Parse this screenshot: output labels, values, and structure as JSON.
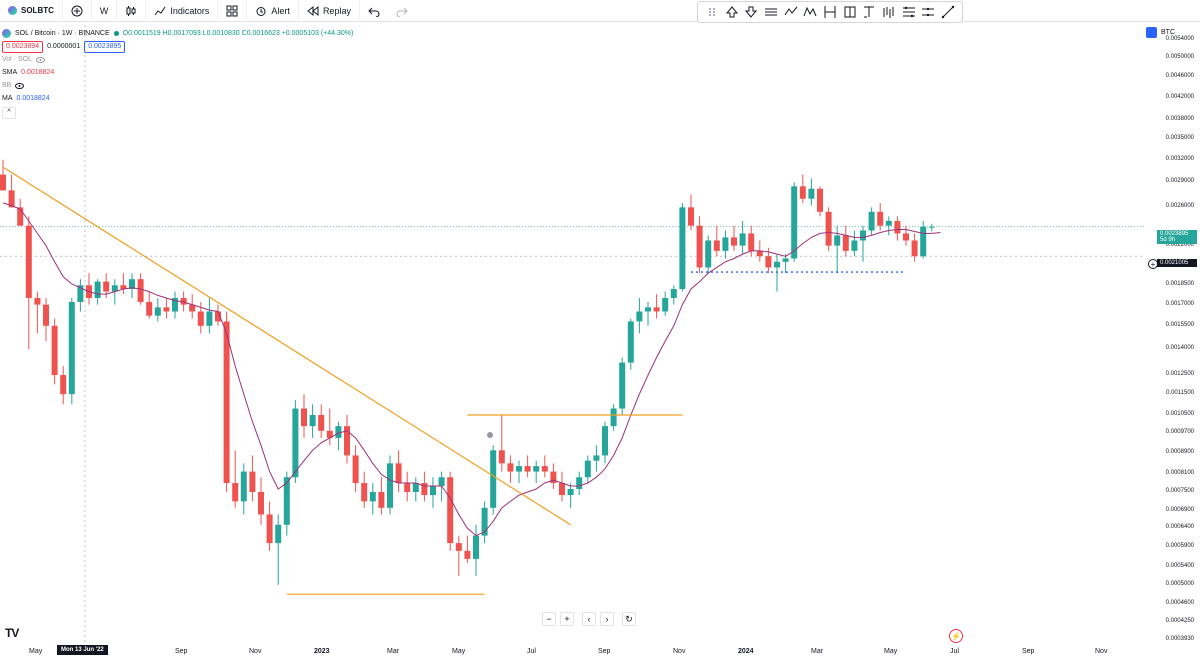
{
  "toolbar": {
    "symbol": "SOLBTC",
    "interval": "W",
    "indicators": "Indicators",
    "alert": "Alert",
    "replay": "Replay"
  },
  "legend": {
    "title": "SOL / Bitcoin · 1W · BINANCE",
    "ohlc": "O0.0011519 H0.0017093 L0.0010830 C0.0016623 +0.0005103 (+44.30%)",
    "bid": "0.0023894",
    "spread": "0.0000001",
    "ask": "0.0023895",
    "vol": "Vol · SOL",
    "sma_label": "SMA",
    "sma_value": "0.0018824",
    "bb_label": "BB",
    "ma_label": "MA",
    "ma_value": "0.0018824"
  },
  "axis": {
    "currency": "BTC",
    "price_ticks": [
      "0.0054000",
      "0.0050000",
      "0.0046000",
      "0.0042000",
      "0.0038000",
      "0.0035000",
      "0.0032000",
      "0.0029000",
      "0.0026000",
      "0.0022000",
      "0.0020000",
      "0.0018500",
      "0.0017000",
      "0.0015500",
      "0.0014000",
      "0.0012500",
      "0.0011500",
      "0.0010500",
      "0.0009700",
      "0.0008900",
      "0.0008100",
      "0.0007500",
      "0.0006900",
      "0.0006400",
      "0.0005900",
      "0.0005400",
      "0.0005000",
      "0.0004600",
      "0.0004250",
      "0.0003930"
    ],
    "last_price": "0.0023895",
    "countdown": "5d 9h",
    "crosshair_price": "0.0021005",
    "time_labels": [
      "May",
      "Sep",
      "Nov",
      "2023",
      "Mar",
      "May",
      "Jul",
      "Sep",
      "Nov",
      "2024",
      "Mar",
      "May",
      "Jul",
      "Sep",
      "Nov"
    ],
    "time_cursor": "Mon 13 Jun '22"
  },
  "colors": {
    "up": "#26a69a",
    "down": "#ef5350",
    "ma": "#a0307a",
    "trend": "#f0a020",
    "support": "#2962ff"
  },
  "chart_data": {
    "type": "candlestick",
    "title": "SOL / Bitcoin · 1W · BINANCE",
    "xlabel": "",
    "ylabel": "",
    "scale": "log",
    "ylim": [
      0.000393,
      0.0054
    ],
    "candles": [
      {
        "o": 0.003,
        "h": 0.0032,
        "l": 0.0028,
        "c": 0.0028
      },
      {
        "o": 0.0028,
        "h": 0.003,
        "l": 0.0026,
        "c": 0.0026
      },
      {
        "o": 0.0026,
        "h": 0.0027,
        "l": 0.0024,
        "c": 0.0024
      },
      {
        "o": 0.0024,
        "h": 0.0025,
        "l": 0.0014,
        "c": 0.00175
      },
      {
        "o": 0.00175,
        "h": 0.0018,
        "l": 0.0015,
        "c": 0.0017
      },
      {
        "o": 0.0017,
        "h": 0.00175,
        "l": 0.00145,
        "c": 0.00155
      },
      {
        "o": 0.00155,
        "h": 0.0016,
        "l": 0.0012,
        "c": 0.00125
      },
      {
        "o": 0.00125,
        "h": 0.0013,
        "l": 0.0011,
        "c": 0.00115
      },
      {
        "o": 0.00115,
        "h": 0.00175,
        "l": 0.0011,
        "c": 0.00172
      },
      {
        "o": 0.00172,
        "h": 0.0019,
        "l": 0.00165,
        "c": 0.00185
      },
      {
        "o": 0.00185,
        "h": 0.00195,
        "l": 0.0017,
        "c": 0.00175
      },
      {
        "o": 0.00175,
        "h": 0.0019,
        "l": 0.0017,
        "c": 0.00188
      },
      {
        "o": 0.00188,
        "h": 0.00195,
        "l": 0.00175,
        "c": 0.0018
      },
      {
        "o": 0.0018,
        "h": 0.0019,
        "l": 0.0017,
        "c": 0.00185
      },
      {
        "o": 0.00185,
        "h": 0.00195,
        "l": 0.00178,
        "c": 0.00182
      },
      {
        "o": 0.00182,
        "h": 0.00195,
        "l": 0.00175,
        "c": 0.0019
      },
      {
        "o": 0.0019,
        "h": 0.00195,
        "l": 0.0017,
        "c": 0.00172
      },
      {
        "o": 0.00172,
        "h": 0.0018,
        "l": 0.0016,
        "c": 0.00162
      },
      {
        "o": 0.00162,
        "h": 0.00175,
        "l": 0.00158,
        "c": 0.00168
      },
      {
        "o": 0.00168,
        "h": 0.00175,
        "l": 0.0016,
        "c": 0.00165
      },
      {
        "o": 0.00165,
        "h": 0.0018,
        "l": 0.0016,
        "c": 0.00175
      },
      {
        "o": 0.00175,
        "h": 0.0018,
        "l": 0.00165,
        "c": 0.0017
      },
      {
        "o": 0.0017,
        "h": 0.00178,
        "l": 0.0016,
        "c": 0.00165
      },
      {
        "o": 0.00165,
        "h": 0.00172,
        "l": 0.0015,
        "c": 0.00155
      },
      {
        "o": 0.00155,
        "h": 0.00175,
        "l": 0.0015,
        "c": 0.00165
      },
      {
        "o": 0.00165,
        "h": 0.0017,
        "l": 0.00155,
        "c": 0.00158
      },
      {
        "o": 0.00158,
        "h": 0.00165,
        "l": 0.00075,
        "c": 0.00078
      },
      {
        "o": 0.00078,
        "h": 0.0009,
        "l": 0.0007,
        "c": 0.00072
      },
      {
        "o": 0.00072,
        "h": 0.00085,
        "l": 0.00068,
        "c": 0.00082
      },
      {
        "o": 0.00082,
        "h": 0.00088,
        "l": 0.00072,
        "c": 0.00075
      },
      {
        "o": 0.00075,
        "h": 0.0008,
        "l": 0.00065,
        "c": 0.00068
      },
      {
        "o": 0.00068,
        "h": 0.00072,
        "l": 0.00058,
        "c": 0.0006
      },
      {
        "o": 0.0006,
        "h": 0.00068,
        "l": 0.0005,
        "c": 0.00065
      },
      {
        "o": 0.00065,
        "h": 0.00082,
        "l": 0.00062,
        "c": 0.0008
      },
      {
        "o": 0.0008,
        "h": 0.00112,
        "l": 0.00078,
        "c": 0.00108
      },
      {
        "o": 0.00108,
        "h": 0.00115,
        "l": 0.00095,
        "c": 0.001
      },
      {
        "o": 0.001,
        "h": 0.0011,
        "l": 0.00095,
        "c": 0.00105
      },
      {
        "o": 0.00105,
        "h": 0.0011,
        "l": 0.00095,
        "c": 0.00098
      },
      {
        "o": 0.00098,
        "h": 0.00108,
        "l": 0.00092,
        "c": 0.00095
      },
      {
        "o": 0.00095,
        "h": 0.00102,
        "l": 0.0009,
        "c": 0.001
      },
      {
        "o": 0.001,
        "h": 0.00105,
        "l": 0.00085,
        "c": 0.00088
      },
      {
        "o": 0.00088,
        "h": 0.00092,
        "l": 0.00075,
        "c": 0.00078
      },
      {
        "o": 0.00078,
        "h": 0.00082,
        "l": 0.0007,
        "c": 0.00072
      },
      {
        "o": 0.00072,
        "h": 0.00078,
        "l": 0.00068,
        "c": 0.00075
      },
      {
        "o": 0.00075,
        "h": 0.0008,
        "l": 0.00068,
        "c": 0.0007
      },
      {
        "o": 0.0007,
        "h": 0.00088,
        "l": 0.00068,
        "c": 0.00085
      },
      {
        "o": 0.00085,
        "h": 0.0009,
        "l": 0.00075,
        "c": 0.00078
      },
      {
        "o": 0.00078,
        "h": 0.00082,
        "l": 0.00072,
        "c": 0.00075
      },
      {
        "o": 0.00075,
        "h": 0.0008,
        "l": 0.00072,
        "c": 0.00078
      },
      {
        "o": 0.00078,
        "h": 0.00082,
        "l": 0.00072,
        "c": 0.00074
      },
      {
        "o": 0.00074,
        "h": 0.0008,
        "l": 0.0007,
        "c": 0.00077
      },
      {
        "o": 0.00077,
        "h": 0.00082,
        "l": 0.00072,
        "c": 0.0008
      },
      {
        "o": 0.0008,
        "h": 0.00082,
        "l": 0.00058,
        "c": 0.0006
      },
      {
        "o": 0.0006,
        "h": 0.00062,
        "l": 0.00052,
        "c": 0.00058
      },
      {
        "o": 0.00058,
        "h": 0.00062,
        "l": 0.00055,
        "c": 0.00056
      },
      {
        "o": 0.00056,
        "h": 0.00065,
        "l": 0.00052,
        "c": 0.00062
      },
      {
        "o": 0.00062,
        "h": 0.00072,
        "l": 0.0006,
        "c": 0.0007
      },
      {
        "o": 0.0007,
        "h": 0.00092,
        "l": 0.00068,
        "c": 0.0009
      },
      {
        "o": 0.0009,
        "h": 0.00105,
        "l": 0.00082,
        "c": 0.00085
      },
      {
        "o": 0.00085,
        "h": 0.00088,
        "l": 0.00078,
        "c": 0.00082
      },
      {
        "o": 0.00082,
        "h": 0.00086,
        "l": 0.00078,
        "c": 0.00084
      },
      {
        "o": 0.00084,
        "h": 0.00088,
        "l": 0.0008,
        "c": 0.00082
      },
      {
        "o": 0.00082,
        "h": 0.00086,
        "l": 0.00078,
        "c": 0.00084
      },
      {
        "o": 0.00084,
        "h": 0.00088,
        "l": 0.0008,
        "c": 0.00082
      },
      {
        "o": 0.00082,
        "h": 0.00085,
        "l": 0.00076,
        "c": 0.00078
      },
      {
        "o": 0.00078,
        "h": 0.00082,
        "l": 0.00072,
        "c": 0.00074
      },
      {
        "o": 0.00074,
        "h": 0.00078,
        "l": 0.0007,
        "c": 0.00076
      },
      {
        "o": 0.00076,
        "h": 0.00082,
        "l": 0.00074,
        "c": 0.0008
      },
      {
        "o": 0.0008,
        "h": 0.00088,
        "l": 0.00078,
        "c": 0.00086
      },
      {
        "o": 0.00086,
        "h": 0.00092,
        "l": 0.00082,
        "c": 0.00088
      },
      {
        "o": 0.00088,
        "h": 0.00102,
        "l": 0.00085,
        "c": 0.001
      },
      {
        "o": 0.001,
        "h": 0.0011,
        "l": 0.00098,
        "c": 0.00108
      },
      {
        "o": 0.00108,
        "h": 0.00135,
        "l": 0.00105,
        "c": 0.00132
      },
      {
        "o": 0.00132,
        "h": 0.0016,
        "l": 0.00128,
        "c": 0.00158
      },
      {
        "o": 0.00158,
        "h": 0.00175,
        "l": 0.0015,
        "c": 0.00165
      },
      {
        "o": 0.00165,
        "h": 0.00172,
        "l": 0.00155,
        "c": 0.00168
      },
      {
        "o": 0.00168,
        "h": 0.00178,
        "l": 0.0016,
        "c": 0.00165
      },
      {
        "o": 0.00165,
        "h": 0.0018,
        "l": 0.00162,
        "c": 0.00175
      },
      {
        "o": 0.00175,
        "h": 0.00185,
        "l": 0.0017,
        "c": 0.00182
      },
      {
        "o": 0.00182,
        "h": 0.00265,
        "l": 0.0018,
        "c": 0.0026
      },
      {
        "o": 0.0026,
        "h": 0.00275,
        "l": 0.00235,
        "c": 0.0024
      },
      {
        "o": 0.0024,
        "h": 0.0025,
        "l": 0.00195,
        "c": 0.002
      },
      {
        "o": 0.002,
        "h": 0.0023,
        "l": 0.00195,
        "c": 0.00225
      },
      {
        "o": 0.00225,
        "h": 0.0024,
        "l": 0.0021,
        "c": 0.00215
      },
      {
        "o": 0.00215,
        "h": 0.00235,
        "l": 0.00208,
        "c": 0.00228
      },
      {
        "o": 0.00228,
        "h": 0.0024,
        "l": 0.00215,
        "c": 0.0022
      },
      {
        "o": 0.0022,
        "h": 0.00245,
        "l": 0.00212,
        "c": 0.00232
      },
      {
        "o": 0.00232,
        "h": 0.0024,
        "l": 0.0021,
        "c": 0.00215
      },
      {
        "o": 0.00215,
        "h": 0.00225,
        "l": 0.00205,
        "c": 0.0021
      },
      {
        "o": 0.0021,
        "h": 0.00218,
        "l": 0.00195,
        "c": 0.002
      },
      {
        "o": 0.002,
        "h": 0.00212,
        "l": 0.0018,
        "c": 0.00205
      },
      {
        "o": 0.00205,
        "h": 0.00212,
        "l": 0.00195,
        "c": 0.00208
      },
      {
        "o": 0.00208,
        "h": 0.0029,
        "l": 0.00205,
        "c": 0.00285
      },
      {
        "o": 0.00285,
        "h": 0.003,
        "l": 0.00265,
        "c": 0.0027
      },
      {
        "o": 0.0027,
        "h": 0.00295,
        "l": 0.00262,
        "c": 0.00282
      },
      {
        "o": 0.00282,
        "h": 0.00285,
        "l": 0.0025,
        "c": 0.00255
      },
      {
        "o": 0.00255,
        "h": 0.0026,
        "l": 0.00215,
        "c": 0.0022
      },
      {
        "o": 0.0022,
        "h": 0.0024,
        "l": 0.00195,
        "c": 0.0023
      },
      {
        "o": 0.0023,
        "h": 0.0024,
        "l": 0.0021,
        "c": 0.00215
      },
      {
        "o": 0.00215,
        "h": 0.00235,
        "l": 0.0021,
        "c": 0.00225
      },
      {
        "o": 0.00225,
        "h": 0.0024,
        "l": 0.00205,
        "c": 0.00235
      },
      {
        "o": 0.00235,
        "h": 0.0026,
        "l": 0.0023,
        "c": 0.00255
      },
      {
        "o": 0.00255,
        "h": 0.00265,
        "l": 0.00235,
        "c": 0.0024
      },
      {
        "o": 0.0024,
        "h": 0.0025,
        "l": 0.0023,
        "c": 0.00245
      },
      {
        "o": 0.00245,
        "h": 0.0025,
        "l": 0.00225,
        "c": 0.00232
      },
      {
        "o": 0.00232,
        "h": 0.0024,
        "l": 0.0022,
        "c": 0.00225
      },
      {
        "o": 0.00225,
        "h": 0.00232,
        "l": 0.00205,
        "c": 0.0021
      },
      {
        "o": 0.0021,
        "h": 0.00245,
        "l": 0.00208,
        "c": 0.00239
      },
      {
        "o": 0.00239,
        "h": 0.00242,
        "l": 0.00234,
        "c": 0.00239
      }
    ],
    "ma": [
      0.00265,
      0.00262,
      0.00258,
      0.00245,
      0.00232,
      0.0022,
      0.00205,
      0.00192,
      0.00186,
      0.00183,
      0.0018,
      0.00178,
      0.00178,
      0.0018,
      0.00182,
      0.00183,
      0.00182,
      0.0018,
      0.00177,
      0.00175,
      0.00173,
      0.00172,
      0.0017,
      0.00168,
      0.00166,
      0.00165,
      0.0015,
      0.0013,
      0.00115,
      0.00102,
      0.00092,
      0.00082,
      0.00076,
      0.00078,
      0.00082,
      0.00086,
      0.0009,
      0.00093,
      0.00095,
      0.00097,
      0.00098,
      0.00095,
      0.0009,
      0.00085,
      0.00081,
      0.00079,
      0.00078,
      0.00078,
      0.00078,
      0.00077,
      0.00077,
      0.00077,
      0.00073,
      0.00068,
      0.00064,
      0.00062,
      0.00063,
      0.00066,
      0.0007,
      0.00072,
      0.00074,
      0.00075,
      0.00076,
      0.00078,
      0.00079,
      0.00078,
      0.00077,
      0.00077,
      0.00078,
      0.0008,
      0.00083,
      0.00088,
      0.00095,
      0.00105,
      0.00115,
      0.00125,
      0.00135,
      0.00145,
      0.00155,
      0.0017,
      0.00182,
      0.00188,
      0.00195,
      0.002,
      0.00205,
      0.00208,
      0.00212,
      0.00215,
      0.00215,
      0.00214,
      0.00212,
      0.0021,
      0.00215,
      0.00222,
      0.00228,
      0.00232,
      0.00233,
      0.00232,
      0.0023,
      0.00228,
      0.00228,
      0.0023,
      0.00233,
      0.00235,
      0.00236,
      0.00236,
      0.00234,
      0.00232,
      0.00232,
      0.00233
    ],
    "trendline": {
      "from": {
        "i": 0,
        "v": 0.0031
      },
      "to": {
        "i": 66,
        "v": 0.00065
      }
    },
    "resistance": {
      "from": 54,
      "to": 79,
      "v": 0.00105
    },
    "support_low": {
      "from": 33,
      "to": 56,
      "v": 0.00048
    },
    "dotted_support": {
      "from": 80,
      "to": 105,
      "v": 0.00196
    }
  },
  "nav": {
    "zoom_out": "−",
    "zoom_in": "+",
    "scroll_left": "‹",
    "scroll_right": "›",
    "reset": "↻"
  }
}
